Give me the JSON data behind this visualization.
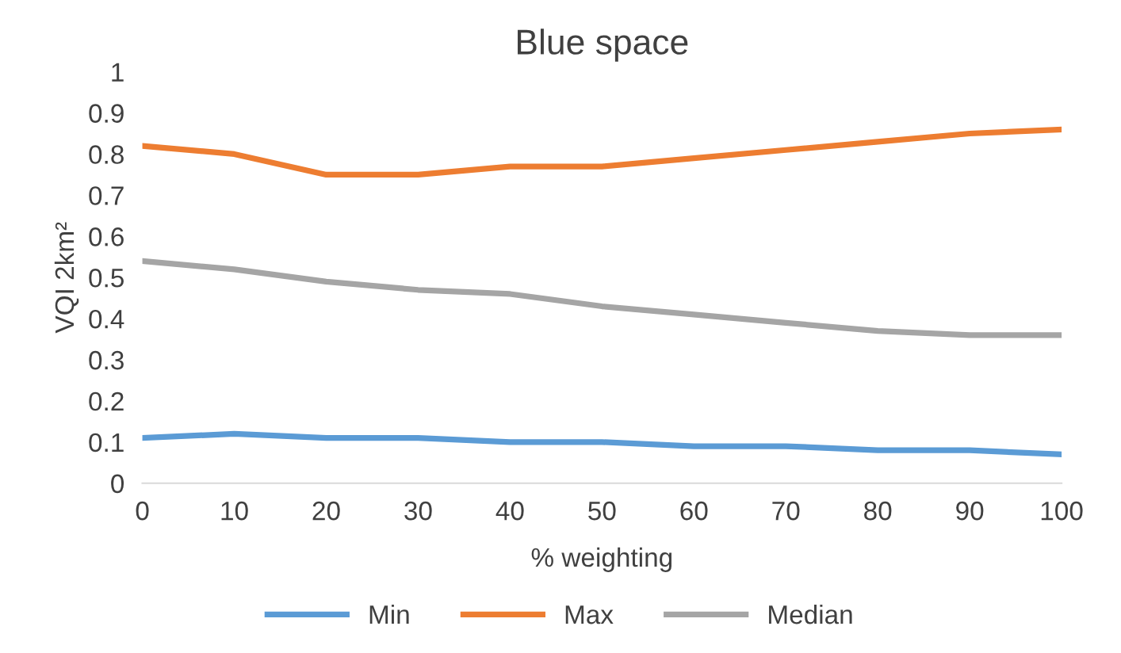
{
  "chart_data": {
    "type": "line",
    "title": "Blue space",
    "xlabel": "% weighting",
    "ylabel": "VQI 2km²",
    "x": [
      0,
      10,
      20,
      30,
      40,
      50,
      60,
      70,
      80,
      90,
      100
    ],
    "series": [
      {
        "name": "Min",
        "color": "#5b9bd5",
        "values": [
          0.11,
          0.12,
          0.11,
          0.11,
          0.1,
          0.1,
          0.09,
          0.09,
          0.08,
          0.08,
          0.07
        ]
      },
      {
        "name": "Max",
        "color": "#ed7d31",
        "values": [
          0.82,
          0.8,
          0.75,
          0.75,
          0.77,
          0.77,
          0.79,
          0.81,
          0.83,
          0.85,
          0.86
        ]
      },
      {
        "name": "Median",
        "color": "#a5a5a5",
        "values": [
          0.54,
          0.52,
          0.49,
          0.47,
          0.46,
          0.43,
          0.41,
          0.39,
          0.37,
          0.36,
          0.36
        ]
      }
    ],
    "xlim": [
      0,
      100
    ],
    "xticks": [
      0,
      10,
      20,
      30,
      40,
      50,
      60,
      70,
      80,
      90,
      100
    ],
    "ylim": [
      0,
      1
    ],
    "yticks": [
      0,
      0.1,
      0.2,
      0.3,
      0.4,
      0.5,
      0.6,
      0.7,
      0.8,
      0.9,
      1
    ],
    "grid": false,
    "legend": "bottom",
    "marker": "none",
    "line_style": "solid"
  }
}
